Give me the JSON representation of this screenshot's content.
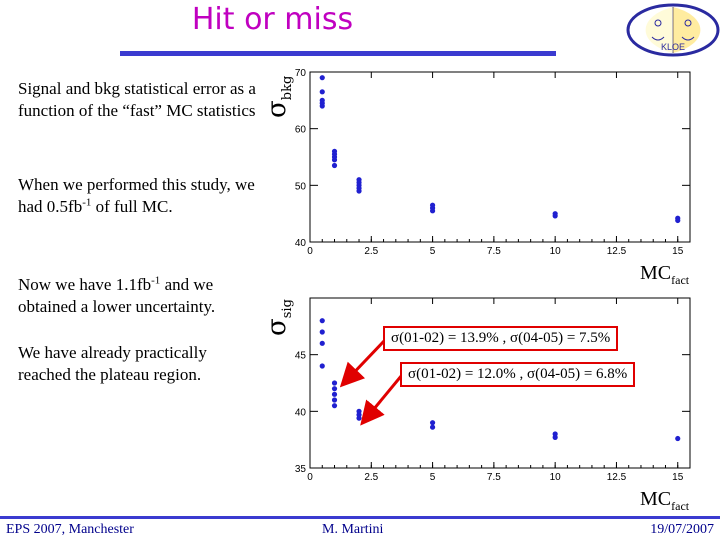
{
  "slide": {
    "title": "Hit or miss",
    "paragraphs": [
      {
        "pre": "Signal and bkg statistical error as a function of the “fast” MC statistics"
      },
      {
        "pre": "When we performed this study, we had 0.5fb",
        "sup": "-1",
        "post": " of full MC."
      },
      {
        "pre": "Now we have 1.1fb",
        "sup": "-1",
        "post": " and we obtained a lower uncertainty."
      },
      {
        "pre": "We have already practically reached the plateau region."
      }
    ],
    "footer": {
      "left": "EPS 2007, Manchester",
      "center": "M. Martini",
      "right": "19/07/2007"
    },
    "logo_text": "KLOE"
  },
  "annotations": {
    "box1": "σ(01-02) = 13.9% , σ(04-05) = 7.5%",
    "box2": "σ(01-02) = 12.0% , σ(04-05) = 6.8%",
    "color": "#e00000"
  },
  "chart_data": [
    {
      "type": "scatter",
      "ylabel": "σ",
      "ylabel_sub": "bkg",
      "xlabel": "MC",
      "xlabel_sub": "fact",
      "xlim": [
        0,
        15.5
      ],
      "ylim": [
        40,
        70
      ],
      "xticks": [
        0,
        2.5,
        5,
        7.5,
        10,
        12.5,
        15
      ],
      "xtick_labels": [
        "0",
        "2.5",
        "5",
        "7.5",
        "10",
        "12.5",
        "15"
      ],
      "yticks": [
        40,
        50,
        60,
        70
      ],
      "ytick_labels": [
        "40",
        "50",
        "60",
        "70"
      ],
      "points": [
        {
          "x": 0.5,
          "y": 69
        },
        {
          "x": 0.5,
          "y": 66.5
        },
        {
          "x": 0.5,
          "y": 65
        },
        {
          "x": 0.5,
          "y": 64.5
        },
        {
          "x": 0.5,
          "y": 64
        },
        {
          "x": 1.0,
          "y": 56
        },
        {
          "x": 1.0,
          "y": 55.5
        },
        {
          "x": 1.0,
          "y": 55
        },
        {
          "x": 1.0,
          "y": 54.5
        },
        {
          "x": 1.0,
          "y": 53.5
        },
        {
          "x": 2.0,
          "y": 51
        },
        {
          "x": 2.0,
          "y": 50.5
        },
        {
          "x": 2.0,
          "y": 50
        },
        {
          "x": 2.0,
          "y": 49.5
        },
        {
          "x": 2.0,
          "y": 49
        },
        {
          "x": 5.0,
          "y": 46.5
        },
        {
          "x": 5.0,
          "y": 46
        },
        {
          "x": 5.0,
          "y": 45.5
        },
        {
          "x": 10.0,
          "y": 45
        },
        {
          "x": 10.0,
          "y": 44.6
        },
        {
          "x": 15.0,
          "y": 44.2
        },
        {
          "x": 15.0,
          "y": 43.8
        }
      ],
      "color": "#2020d0"
    },
    {
      "type": "scatter",
      "ylabel": "σ",
      "ylabel_sub": "sig",
      "xlabel": "MC",
      "xlabel_sub": "fact",
      "xlim": [
        0,
        15.5
      ],
      "ylim": [
        35,
        50
      ],
      "xticks": [
        0,
        2.5,
        5,
        7.5,
        10,
        12.5,
        15
      ],
      "xtick_labels": [
        "0",
        "2.5",
        "5",
        "7.5",
        "10",
        "12.5",
        "15"
      ],
      "yticks": [
        35,
        40,
        45
      ],
      "ytick_labels": [
        "35",
        "40",
        "45"
      ],
      "points": [
        {
          "x": 0.5,
          "y": 48
        },
        {
          "x": 0.5,
          "y": 47
        },
        {
          "x": 0.5,
          "y": 46
        },
        {
          "x": 0.5,
          "y": 44
        },
        {
          "x": 1.0,
          "y": 42.5
        },
        {
          "x": 1.0,
          "y": 42
        },
        {
          "x": 1.0,
          "y": 41.5
        },
        {
          "x": 1.0,
          "y": 41
        },
        {
          "x": 1.0,
          "y": 40.5
        },
        {
          "x": 2.0,
          "y": 40
        },
        {
          "x": 2.0,
          "y": 39.7
        },
        {
          "x": 2.0,
          "y": 39.4
        },
        {
          "x": 5.0,
          "y": 39
        },
        {
          "x": 5.0,
          "y": 38.6
        },
        {
          "x": 10.0,
          "y": 38
        },
        {
          "x": 10.0,
          "y": 37.7
        },
        {
          "x": 15.0,
          "y": 37.6
        }
      ],
      "color": "#2020d0"
    }
  ]
}
